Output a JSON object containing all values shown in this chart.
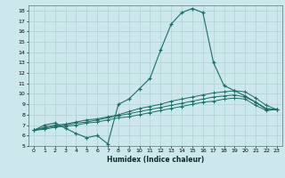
{
  "xlabel": "Humidex (Indice chaleur)",
  "background_color": "#cce8ec",
  "grid_color": "#aacccc",
  "line_color": "#1a6e65",
  "xlim": [
    -0.5,
    23.5
  ],
  "ylim": [
    5,
    18.5
  ],
  "xticks": [
    0,
    1,
    2,
    3,
    4,
    5,
    6,
    7,
    8,
    9,
    10,
    11,
    12,
    13,
    14,
    15,
    16,
    17,
    18,
    19,
    20,
    21,
    22,
    23
  ],
  "yticks": [
    5,
    6,
    7,
    8,
    9,
    10,
    11,
    12,
    13,
    14,
    15,
    16,
    17,
    18
  ],
  "line1_x": [
    0,
    1,
    2,
    3,
    4,
    5,
    6,
    7,
    8,
    9,
    10,
    11,
    12,
    13,
    14,
    15,
    16,
    17,
    18,
    19,
    20,
    21,
    22,
    23
  ],
  "line1_y": [
    6.5,
    7.0,
    7.2,
    6.7,
    6.2,
    5.8,
    6.0,
    5.2,
    9.0,
    9.5,
    10.5,
    11.5,
    14.2,
    16.7,
    17.8,
    18.2,
    17.8,
    13.0,
    10.8,
    10.3,
    9.8,
    9.2,
    8.5,
    8.5
  ],
  "line2_x": [
    0,
    1,
    2,
    3,
    4,
    5,
    6,
    7,
    8,
    9,
    10,
    11,
    12,
    13,
    14,
    15,
    16,
    17,
    18,
    19,
    20,
    21,
    22,
    23
  ],
  "line2_y": [
    6.5,
    6.8,
    7.0,
    7.1,
    7.3,
    7.5,
    7.6,
    7.8,
    8.0,
    8.3,
    8.6,
    8.8,
    9.0,
    9.3,
    9.5,
    9.7,
    9.9,
    10.1,
    10.2,
    10.3,
    10.2,
    9.6,
    8.9,
    8.5
  ],
  "line3_x": [
    0,
    1,
    2,
    3,
    4,
    5,
    6,
    7,
    8,
    9,
    10,
    11,
    12,
    13,
    14,
    15,
    16,
    17,
    18,
    19,
    20,
    21,
    22,
    23
  ],
  "line3_y": [
    6.5,
    6.7,
    6.9,
    7.0,
    7.2,
    7.3,
    7.5,
    7.7,
    7.9,
    8.1,
    8.3,
    8.5,
    8.7,
    8.9,
    9.1,
    9.3,
    9.5,
    9.7,
    9.8,
    9.9,
    9.7,
    9.2,
    8.6,
    8.5
  ],
  "line4_x": [
    0,
    1,
    2,
    3,
    4,
    5,
    6,
    7,
    8,
    9,
    10,
    11,
    12,
    13,
    14,
    15,
    16,
    17,
    18,
    19,
    20,
    21,
    22,
    23
  ],
  "line4_y": [
    6.5,
    6.6,
    6.8,
    6.9,
    7.0,
    7.2,
    7.3,
    7.5,
    7.7,
    7.8,
    8.0,
    8.2,
    8.4,
    8.6,
    8.8,
    9.0,
    9.2,
    9.3,
    9.5,
    9.6,
    9.5,
    8.9,
    8.4,
    8.5
  ]
}
